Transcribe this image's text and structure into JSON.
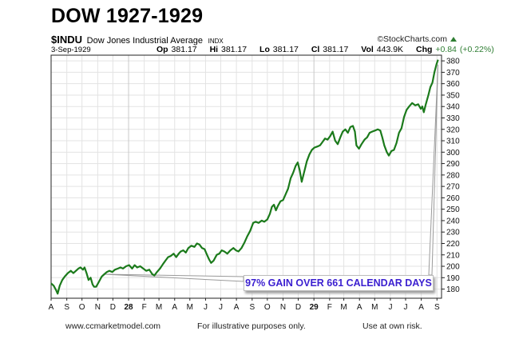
{
  "page": {
    "title": "DOW 1927-1929",
    "footer_left": "www.ccmarketmodel.com",
    "footer_center": "For illustrative purposes only.",
    "footer_right": "Use at own risk."
  },
  "header": {
    "symbol": "$INDU",
    "name": "Dow Jones Industrial Average",
    "exchange": "INDX",
    "brand": "StockCharts.com",
    "brand_prefix": "©",
    "date": "3-Sep-1929",
    "op_label": "Op",
    "op": "381.17",
    "hi_label": "Hi",
    "hi": "381.17",
    "lo_label": "Lo",
    "lo": "381.17",
    "cl_label": "Cl",
    "cl": "381.17",
    "vol_label": "Vol",
    "vol": "443.9K",
    "chg_label": "Chg",
    "chg": "+0.84 (+0.22%)"
  },
  "colors": {
    "line": "#1b7a1b",
    "annotation": "#3b1fd0",
    "grid": "#e3e3e3"
  },
  "chart_data": {
    "type": "line",
    "title": "",
    "xlabel": "",
    "ylabel": "",
    "x_start": "1927-08-01",
    "x_end": "1929-09-10",
    "ylim": [
      172,
      385
    ],
    "yticks": [
      180,
      190,
      200,
      210,
      220,
      230,
      240,
      250,
      260,
      270,
      280,
      290,
      300,
      310,
      320,
      330,
      340,
      350,
      360,
      370,
      380
    ],
    "xticks": [
      {
        "label": "A",
        "date": "1927-08-01"
      },
      {
        "label": "S",
        "date": "1927-09-01"
      },
      {
        "label": "O",
        "date": "1927-10-01"
      },
      {
        "label": "N",
        "date": "1927-11-01"
      },
      {
        "label": "D",
        "date": "1927-12-01"
      },
      {
        "label": "28",
        "date": "1928-01-01",
        "bold": true
      },
      {
        "label": "F",
        "date": "1928-02-01"
      },
      {
        "label": "M",
        "date": "1928-03-01"
      },
      {
        "label": "A",
        "date": "1928-04-01"
      },
      {
        "label": "M",
        "date": "1928-05-01"
      },
      {
        "label": "J",
        "date": "1928-06-01"
      },
      {
        "label": "J",
        "date": "1928-07-01"
      },
      {
        "label": "A",
        "date": "1928-08-01"
      },
      {
        "label": "S",
        "date": "1928-09-01"
      },
      {
        "label": "O",
        "date": "1928-10-01"
      },
      {
        "label": "N",
        "date": "1928-11-01"
      },
      {
        "label": "D",
        "date": "1928-12-01"
      },
      {
        "label": "29",
        "date": "1929-01-01",
        "bold": true
      },
      {
        "label": "F",
        "date": "1929-02-01"
      },
      {
        "label": "M",
        "date": "1929-03-01"
      },
      {
        "label": "A",
        "date": "1929-04-01"
      },
      {
        "label": "M",
        "date": "1929-05-01"
      },
      {
        "label": "J",
        "date": "1929-06-01"
      },
      {
        "label": "J",
        "date": "1929-07-01"
      },
      {
        "label": "A",
        "date": "1929-08-01"
      },
      {
        "label": "S",
        "date": "1929-09-01"
      }
    ],
    "grid": true,
    "series": [
      {
        "name": "",
        "points": [
          [
            "1927-08-01",
            185
          ],
          [
            "1927-08-06",
            183
          ],
          [
            "1927-08-11",
            179
          ],
          [
            "1927-08-14",
            176
          ],
          [
            "1927-08-18",
            183
          ],
          [
            "1927-08-23",
            188
          ],
          [
            "1927-08-28",
            191
          ],
          [
            "1927-09-03",
            194
          ],
          [
            "1927-09-09",
            196
          ],
          [
            "1927-09-14",
            194
          ],
          [
            "1927-09-19",
            196
          ],
          [
            "1927-09-24",
            198
          ],
          [
            "1927-09-28",
            199
          ],
          [
            "1927-10-03",
            197
          ],
          [
            "1927-10-06",
            199
          ],
          [
            "1927-10-10",
            194
          ],
          [
            "1927-10-14",
            188
          ],
          [
            "1927-10-18",
            190
          ],
          [
            "1927-10-22",
            184
          ],
          [
            "1927-10-25",
            182
          ],
          [
            "1927-10-29",
            182
          ],
          [
            "1927-11-03",
            186
          ],
          [
            "1927-11-09",
            191
          ],
          [
            "1927-11-14",
            193
          ],
          [
            "1927-11-19",
            195
          ],
          [
            "1927-11-24",
            196
          ],
          [
            "1927-11-30",
            195
          ],
          [
            "1927-12-05",
            197
          ],
          [
            "1927-12-11",
            198
          ],
          [
            "1927-12-16",
            199
          ],
          [
            "1927-12-21",
            198
          ],
          [
            "1927-12-27",
            200
          ],
          [
            "1928-01-02",
            201
          ],
          [
            "1928-01-08",
            198
          ],
          [
            "1928-01-13",
            201
          ],
          [
            "1928-01-18",
            199
          ],
          [
            "1928-01-24",
            200
          ],
          [
            "1928-01-30",
            198
          ],
          [
            "1928-02-05",
            196
          ],
          [
            "1928-02-11",
            197
          ],
          [
            "1928-02-17",
            193
          ],
          [
            "1928-02-21",
            192
          ],
          [
            "1928-02-26",
            195
          ],
          [
            "1928-03-03",
            198
          ],
          [
            "1928-03-09",
            202
          ],
          [
            "1928-03-14",
            205
          ],
          [
            "1928-03-19",
            208
          ],
          [
            "1928-03-24",
            209
          ],
          [
            "1928-03-30",
            211
          ],
          [
            "1928-04-04",
            208
          ],
          [
            "1928-04-09",
            211
          ],
          [
            "1928-04-13",
            213
          ],
          [
            "1928-04-18",
            214
          ],
          [
            "1928-04-23",
            212
          ],
          [
            "1928-04-28",
            216
          ],
          [
            "1928-05-04",
            218
          ],
          [
            "1928-05-10",
            217
          ],
          [
            "1928-05-15",
            220
          ],
          [
            "1928-05-20",
            219
          ],
          [
            "1928-05-25",
            216
          ],
          [
            "1928-05-30",
            215
          ],
          [
            "1928-06-04",
            210
          ],
          [
            "1928-06-08",
            206
          ],
          [
            "1928-06-12",
            203
          ],
          [
            "1928-06-17",
            205
          ],
          [
            "1928-06-23",
            210
          ],
          [
            "1928-06-28",
            211
          ],
          [
            "1928-07-03",
            214
          ],
          [
            "1928-07-08",
            213
          ],
          [
            "1928-07-14",
            211
          ],
          [
            "1928-07-20",
            214
          ],
          [
            "1928-07-26",
            216
          ],
          [
            "1928-07-31",
            214
          ],
          [
            "1928-08-05",
            213
          ],
          [
            "1928-08-11",
            216
          ],
          [
            "1928-08-17",
            221
          ],
          [
            "1928-08-22",
            226
          ],
          [
            "1928-08-28",
            231
          ],
          [
            "1928-09-03",
            238
          ],
          [
            "1928-09-08",
            239
          ],
          [
            "1928-09-14",
            238
          ],
          [
            "1928-09-20",
            240
          ],
          [
            "1928-09-25",
            239
          ],
          [
            "1928-10-01",
            241
          ],
          [
            "1928-10-06",
            246
          ],
          [
            "1928-10-10",
            252
          ],
          [
            "1928-10-14",
            254
          ],
          [
            "1928-10-18",
            249
          ],
          [
            "1928-10-22",
            253
          ],
          [
            "1928-10-27",
            257
          ],
          [
            "1928-11-01",
            258
          ],
          [
            "1928-11-06",
            263
          ],
          [
            "1928-11-11",
            268
          ],
          [
            "1928-11-16",
            277
          ],
          [
            "1928-11-21",
            282
          ],
          [
            "1928-11-26",
            288
          ],
          [
            "1928-11-30",
            291
          ],
          [
            "1928-12-04",
            284
          ],
          [
            "1928-12-08",
            274
          ],
          [
            "1928-12-13",
            283
          ],
          [
            "1928-12-18",
            292
          ],
          [
            "1928-12-23",
            298
          ],
          [
            "1928-12-28",
            302
          ],
          [
            "1929-01-02",
            304
          ],
          [
            "1929-01-08",
            305
          ],
          [
            "1929-01-13",
            306
          ],
          [
            "1929-01-18",
            309
          ],
          [
            "1929-01-23",
            312
          ],
          [
            "1929-01-28",
            311
          ],
          [
            "1929-02-02",
            314
          ],
          [
            "1929-02-07",
            318
          ],
          [
            "1929-02-12",
            310
          ],
          [
            "1929-02-17",
            307
          ],
          [
            "1929-02-22",
            313
          ],
          [
            "1929-02-27",
            318
          ],
          [
            "1929-03-04",
            320
          ],
          [
            "1929-03-09",
            317
          ],
          [
            "1929-03-14",
            322
          ],
          [
            "1929-03-19",
            323
          ],
          [
            "1929-03-23",
            318
          ],
          [
            "1929-03-26",
            306
          ],
          [
            "1929-03-31",
            303
          ],
          [
            "1929-04-05",
            307
          ],
          [
            "1929-04-11",
            311
          ],
          [
            "1929-04-16",
            313
          ],
          [
            "1929-04-21",
            317
          ],
          [
            "1929-04-26",
            318
          ],
          [
            "1929-05-02",
            319
          ],
          [
            "1929-05-07",
            320
          ],
          [
            "1929-05-12",
            319
          ],
          [
            "1929-05-16",
            313
          ],
          [
            "1929-05-20",
            306
          ],
          [
            "1929-05-25",
            300
          ],
          [
            "1929-05-29",
            297
          ],
          [
            "1929-06-03",
            301
          ],
          [
            "1929-06-08",
            302
          ],
          [
            "1929-06-13",
            308
          ],
          [
            "1929-06-18",
            317
          ],
          [
            "1929-06-23",
            321
          ],
          [
            "1929-06-28",
            331
          ],
          [
            "1929-07-03",
            337
          ],
          [
            "1929-07-08",
            340
          ],
          [
            "1929-07-14",
            343
          ],
          [
            "1929-07-20",
            341
          ],
          [
            "1929-07-26",
            342
          ],
          [
            "1929-07-31",
            338
          ],
          [
            "1929-08-03",
            340
          ],
          [
            "1929-08-06",
            335
          ],
          [
            "1929-08-10",
            342
          ],
          [
            "1929-08-15",
            350
          ],
          [
            "1929-08-19",
            357
          ],
          [
            "1929-08-23",
            361
          ],
          [
            "1929-08-27",
            370
          ],
          [
            "1929-08-31",
            377
          ],
          [
            "1929-09-03",
            381
          ]
        ]
      }
    ],
    "annotation": {
      "text": "97% GAIN OVER 661 CALENDAR DAYS",
      "start_point": [
        "1927-11-14",
        193
      ],
      "end_point": [
        "1929-09-03",
        381
      ]
    }
  }
}
